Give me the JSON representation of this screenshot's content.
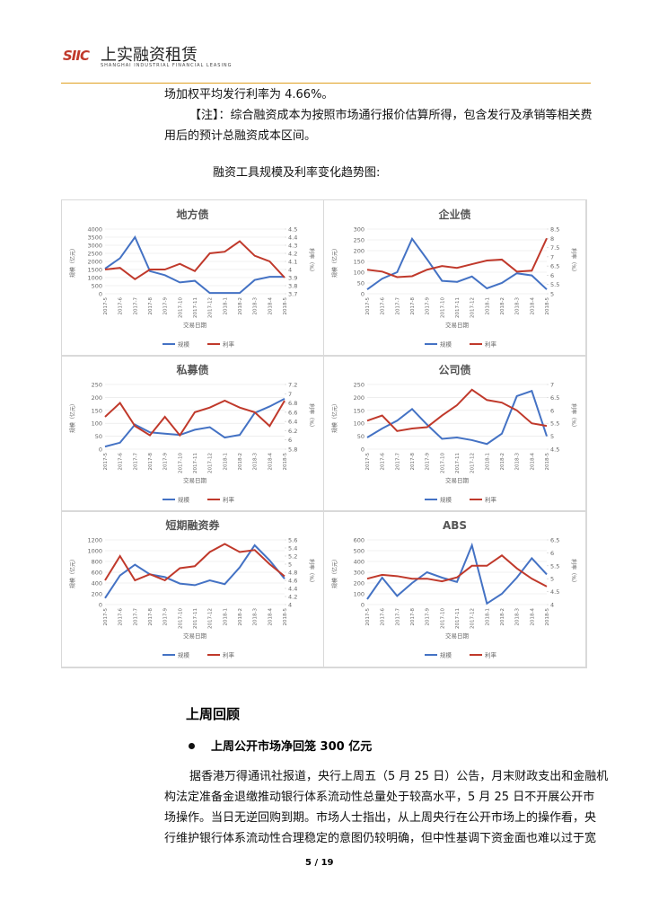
{
  "header": {
    "logo": "SIIC",
    "company": "上实融资租赁",
    "company_en": "SHANGHAI INDUSTRIAL FINANCIAL LEASING"
  },
  "intro": {
    "line1": "场加权平均发行利率为 4.66%。",
    "note": "【注】：综合融资成本为按照市场通行报价估算所得，包含发行及承销等相关费",
    "note_cont": "用后的预计总融资成本区间。",
    "chart_heading": "融资工具规模及利率变化趋势图:"
  },
  "chart_data": [
    {
      "type": "line",
      "title": "地方债",
      "xlabel": "交易日期",
      "ylabel": "规模（亿元）",
      "y2label": "利率（%）",
      "categories": [
        "2017-5",
        "2017-6",
        "2017-7",
        "2017-8",
        "2017-9",
        "2017-10",
        "2017-11",
        "2017-12",
        "2018-1",
        "2018-2",
        "2018-3",
        "2018-4",
        "2018-5"
      ],
      "series": [
        {
          "name": "规模",
          "color": "#4472c4",
          "values": [
            1550,
            2200,
            3500,
            1400,
            1150,
            700,
            800,
            50,
            50,
            50,
            850,
            1050,
            1050
          ]
        },
        {
          "name": "利率",
          "color": "#c0392b",
          "axis": "y2",
          "values": [
            4.0,
            4.02,
            3.88,
            4.0,
            4.0,
            4.07,
            3.98,
            4.2,
            4.22,
            4.35,
            4.17,
            4.1,
            3.9
          ]
        }
      ],
      "ylim": [
        0,
        4000
      ],
      "yticks": [
        0,
        500,
        1000,
        1500,
        2000,
        2500,
        3000,
        3500,
        4000
      ],
      "y2lim": [
        3.7,
        4.5
      ],
      "y2ticks": [
        3.7,
        3.8,
        3.9,
        4,
        4.1,
        4.2,
        4.3,
        4.4,
        4.5
      ]
    },
    {
      "type": "line",
      "title": "企业债",
      "xlabel": "交易日期",
      "ylabel": "规模（亿元）",
      "y2label": "利率（%）",
      "categories": [
        "2017-5",
        "2017-6",
        "2017-7",
        "2017-8",
        "2017-9",
        "2017-10",
        "2017-11",
        "2017-12",
        "2018-1",
        "2018-2",
        "2018-3",
        "2018-4",
        "2018-5"
      ],
      "series": [
        {
          "name": "规模",
          "color": "#4472c4",
          "values": [
            20,
            70,
            100,
            255,
            160,
            60,
            55,
            80,
            25,
            50,
            95,
            85,
            20
          ]
        },
        {
          "name": "利率",
          "color": "#c0392b",
          "axis": "y2",
          "values": [
            6.3,
            6.2,
            5.9,
            5.95,
            6.3,
            6.5,
            6.4,
            6.6,
            6.8,
            6.85,
            6.2,
            6.25,
            8.0
          ]
        }
      ],
      "ylim": [
        0,
        300
      ],
      "yticks": [
        0,
        50,
        100,
        150,
        200,
        250,
        300
      ],
      "y2lim": [
        5,
        8.5
      ],
      "y2ticks": [
        5,
        5.5,
        6,
        6.5,
        7,
        7.5,
        8,
        8.5
      ]
    },
    {
      "type": "line",
      "title": "私募债",
      "xlabel": "交易日期",
      "ylabel": "规模（亿元）",
      "y2label": "利率（%）",
      "categories": [
        "2017-5",
        "2017-6",
        "2017-7",
        "2017-8",
        "2017-9",
        "2017-10",
        "2017-11",
        "2017-12",
        "2018-1",
        "2018-2",
        "2018-3",
        "2018-4",
        "2018-5"
      ],
      "series": [
        {
          "name": "规模",
          "color": "#4472c4",
          "values": [
            10,
            25,
            95,
            65,
            60,
            55,
            75,
            85,
            45,
            55,
            140,
            165,
            195
          ]
        },
        {
          "name": "利率",
          "color": "#c0392b",
          "axis": "y2",
          "values": [
            6.5,
            6.8,
            6.3,
            6.1,
            6.5,
            6.1,
            6.6,
            6.7,
            6.85,
            6.7,
            6.6,
            6.3,
            6.85
          ]
        }
      ],
      "ylim": [
        0,
        250
      ],
      "yticks": [
        0,
        50,
        100,
        150,
        200,
        250
      ],
      "y2lim": [
        5.8,
        7.2
      ],
      "y2ticks": [
        5.8,
        6,
        6.2,
        6.4,
        6.6,
        6.8,
        7,
        7.2
      ]
    },
    {
      "type": "line",
      "title": "公司债",
      "xlabel": "交易日期",
      "ylabel": "规模（亿元）",
      "y2label": "利率（%）",
      "categories": [
        "2017-5",
        "2017-6",
        "2017-7",
        "2017-8",
        "2017-9",
        "2017-10",
        "2017-11",
        "2017-12",
        "2018-1",
        "2018-2",
        "2018-3",
        "2018-4",
        "2018-5"
      ],
      "series": [
        {
          "name": "规模",
          "color": "#4472c4",
          "values": [
            45,
            80,
            110,
            155,
            95,
            40,
            45,
            35,
            20,
            60,
            205,
            225,
            50
          ]
        },
        {
          "name": "利率",
          "color": "#c0392b",
          "axis": "y2",
          "values": [
            5.6,
            5.8,
            5.2,
            5.3,
            5.35,
            5.8,
            6.2,
            6.8,
            6.4,
            6.3,
            6.0,
            5.5,
            5.4
          ]
        }
      ],
      "ylim": [
        0,
        250
      ],
      "yticks": [
        0,
        50,
        100,
        150,
        200,
        250
      ],
      "y2lim": [
        4.5,
        7
      ],
      "y2ticks": [
        4.5,
        5,
        5.5,
        6,
        6.5,
        7
      ]
    },
    {
      "type": "line",
      "title": "短期融资券",
      "xlabel": "交易日期",
      "ylabel": "规模（亿元）",
      "y2label": "利率（%）",
      "categories": [
        "2017-5",
        "2017-6",
        "2017-7",
        "2017-8",
        "2017-9",
        "2017-10",
        "2017-11",
        "2017-12",
        "2018-1",
        "2018-2",
        "2018-3",
        "2018-4",
        "2018-5"
      ],
      "series": [
        {
          "name": "规模",
          "color": "#4472c4",
          "values": [
            120,
            540,
            740,
            560,
            510,
            390,
            360,
            450,
            380,
            690,
            1100,
            820,
            480
          ]
        },
        {
          "name": "利率",
          "color": "#c0392b",
          "axis": "y2",
          "values": [
            4.6,
            5.2,
            4.6,
            4.75,
            4.6,
            4.9,
            4.95,
            5.3,
            5.5,
            5.3,
            5.35,
            5.0,
            4.7
          ]
        }
      ],
      "ylim": [
        0,
        1200
      ],
      "yticks": [
        0,
        200,
        400,
        600,
        800,
        1000,
        1200
      ],
      "y2lim": [
        4,
        5.6
      ],
      "y2ticks": [
        4,
        4.2,
        4.4,
        4.6,
        4.8,
        5,
        5.2,
        5.4,
        5.6
      ]
    },
    {
      "type": "line",
      "title": "ABS",
      "xlabel": "交易日期",
      "ylabel": "规模（亿元）",
      "y2label": "利率（%）",
      "categories": [
        "2017-5",
        "2017-6",
        "2017-7",
        "2017-8",
        "2017-9",
        "2017-10",
        "2017-11",
        "2017-12",
        "2018-1",
        "2018-2",
        "2018-3",
        "2018-4",
        "2018-5"
      ],
      "series": [
        {
          "name": "规模",
          "color": "#4472c4",
          "values": [
            50,
            250,
            80,
            200,
            300,
            250,
            210,
            550,
            10,
            100,
            250,
            430,
            280
          ]
        },
        {
          "name": "利率",
          "color": "#c0392b",
          "axis": "y2",
          "values": [
            5.0,
            5.15,
            5.1,
            5.0,
            5.0,
            4.9,
            5.05,
            5.5,
            5.5,
            5.9,
            5.4,
            5.0,
            4.7
          ]
        }
      ],
      "ylim": [
        0,
        600
      ],
      "yticks": [
        0,
        100,
        200,
        300,
        400,
        500,
        600
      ],
      "y2lim": [
        4,
        6.5
      ],
      "y2ticks": [
        4,
        4.5,
        5,
        5.5,
        6,
        6.5
      ]
    }
  ],
  "review": {
    "heading": "上周回顾",
    "bullet": "上周公开市场净回笼 300 亿元",
    "paragraph": [
      "据香港万得通讯社报道，央行上周五（5 月 25 日）公告，月末财政支出和金融机",
      "构法定准备金退缴推动银行体系流动性总量处于较高水平，5 月 25 日不开展公开市",
      "场操作。当日无逆回购到期。市场人士指出，从上周央行在公开市场上的操作看，央",
      "行维护银行体系流动性合理稳定的意图仍较明确，但中性基调下资金面也难以过于宽"
    ]
  },
  "footer": {
    "page": "5 / 19"
  }
}
